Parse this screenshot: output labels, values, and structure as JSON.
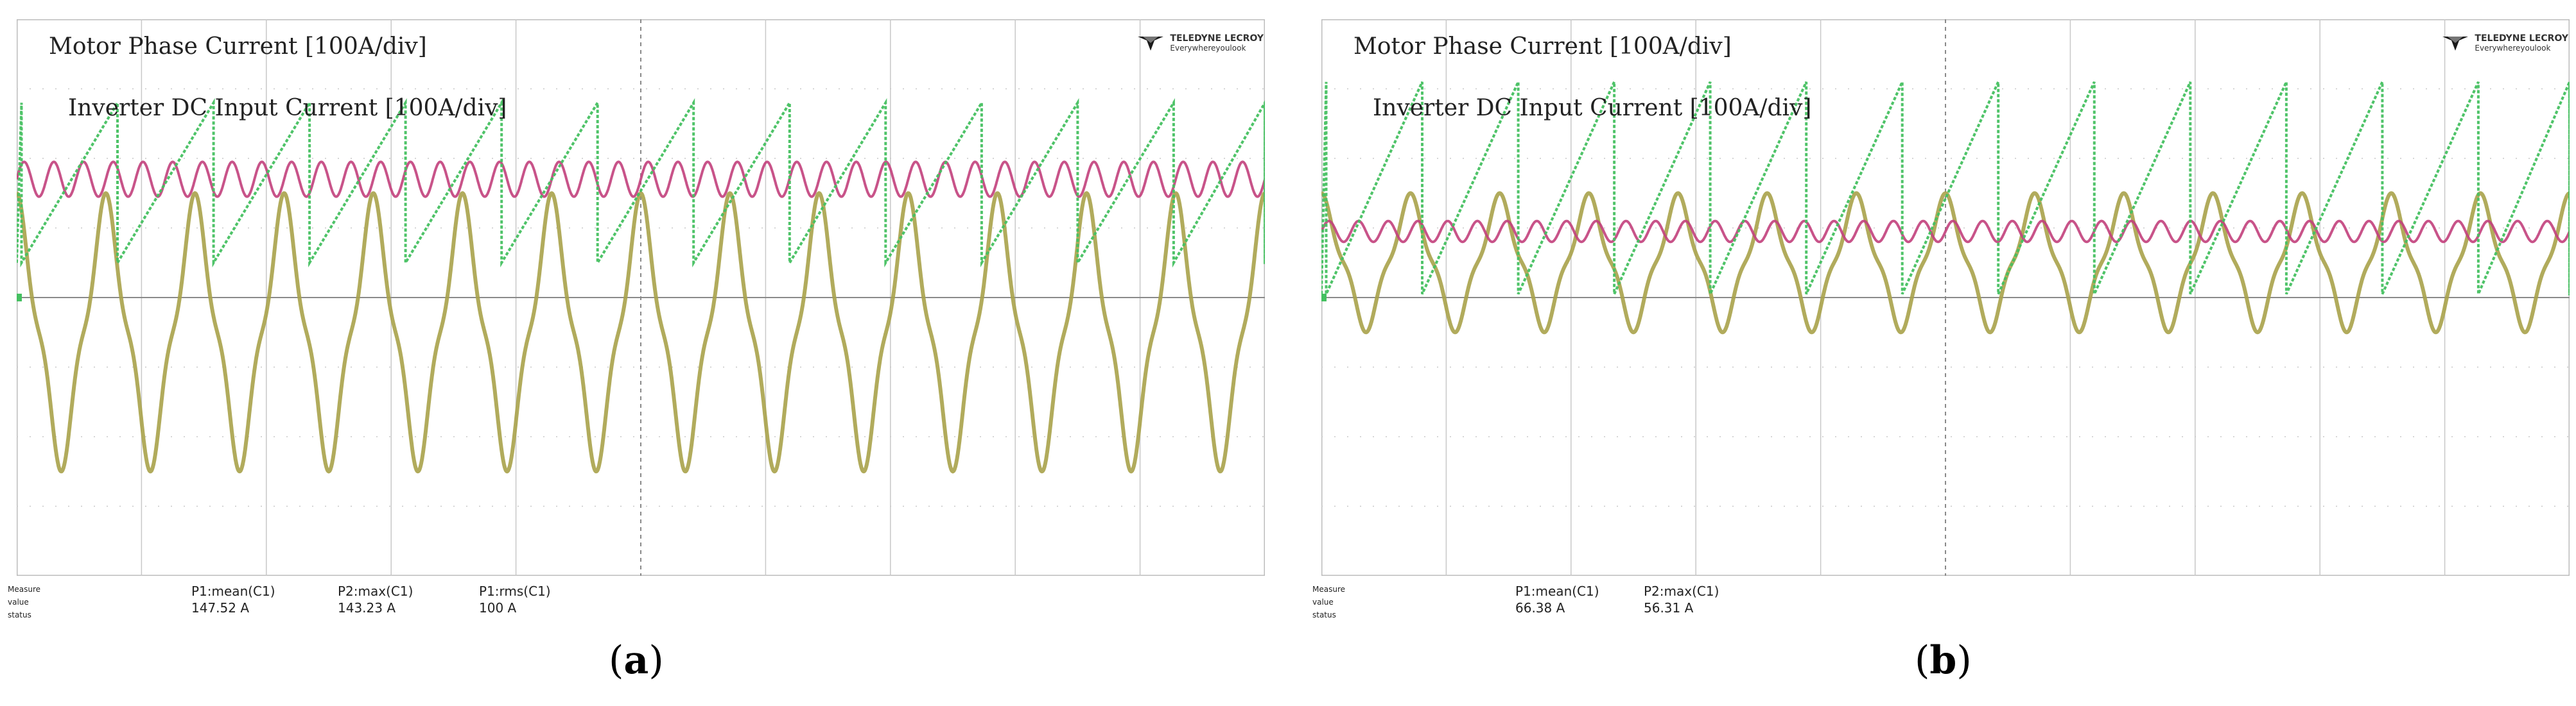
{
  "colors": {
    "phase_current": "#a8a24a",
    "dc_input_current": "#c2407c",
    "sawtooth": "#44c060",
    "grid_line": "#c8c8c8",
    "grid_dot": "#bdbdbd",
    "border": "#bcbcbc"
  },
  "chart_data": [
    {
      "type": "line",
      "panel": "a",
      "caption": "a",
      "labels": {
        "motor_phase": "Motor Phase Current [100A/div]",
        "dc_input": "Inverter DC Input Current [100A/div]"
      },
      "logo": {
        "brand": "TELEDYNE LECROY",
        "tagline": "Everywhereyoulook"
      },
      "grid": {
        "x_divisions": 10,
        "y_divisions": 8
      },
      "series": [
        {
          "waveform": "phase-sine",
          "cycles": 14,
          "center_div": 4.5,
          "amplitude_div": 2.0
        },
        {
          "waveform": "dc-ripple",
          "cycles": 42,
          "center_div": 2.3,
          "amplitude_div": 0.25
        },
        {
          "waveform": "sawtooth",
          "cycles": 13,
          "low_div": 3.5,
          "high_div": 1.2
        }
      ],
      "measure": {
        "headers": [
          "Measure",
          "value",
          "status"
        ],
        "params": [
          {
            "name": "P1:mean(C1)",
            "value": "147.52 A"
          },
          {
            "name": "P2:max(C1)",
            "value": "143.23 A"
          },
          {
            "name": "P1:rms(C1)",
            "value": "100 A"
          }
        ]
      }
    },
    {
      "type": "line",
      "panel": "b",
      "caption": "b",
      "labels": {
        "motor_phase": "Motor Phase Current [100A/div]",
        "dc_input": "Inverter DC Input Current [100A/div]"
      },
      "logo": {
        "brand": "TELEDYNE LECROY",
        "tagline": "Everywhereyoulook"
      },
      "grid": {
        "x_divisions": 10,
        "y_divisions": 8
      },
      "series": [
        {
          "waveform": "phase-sine",
          "cycles": 14,
          "center_div": 3.5,
          "amplitude_div": 1.0
        },
        {
          "waveform": "dc-ripple",
          "cycles": 42,
          "center_div": 3.05,
          "amplitude_div": 0.15
        },
        {
          "waveform": "sawtooth",
          "cycles": 13,
          "low_div": 3.95,
          "high_div": 0.9
        }
      ],
      "measure": {
        "headers": [
          "Measure",
          "value",
          "status"
        ],
        "params": [
          {
            "name": "P1:mean(C1)",
            "value": "66.38 A"
          },
          {
            "name": "P2:max(C1)",
            "value": "56.31 A"
          }
        ]
      }
    }
  ]
}
